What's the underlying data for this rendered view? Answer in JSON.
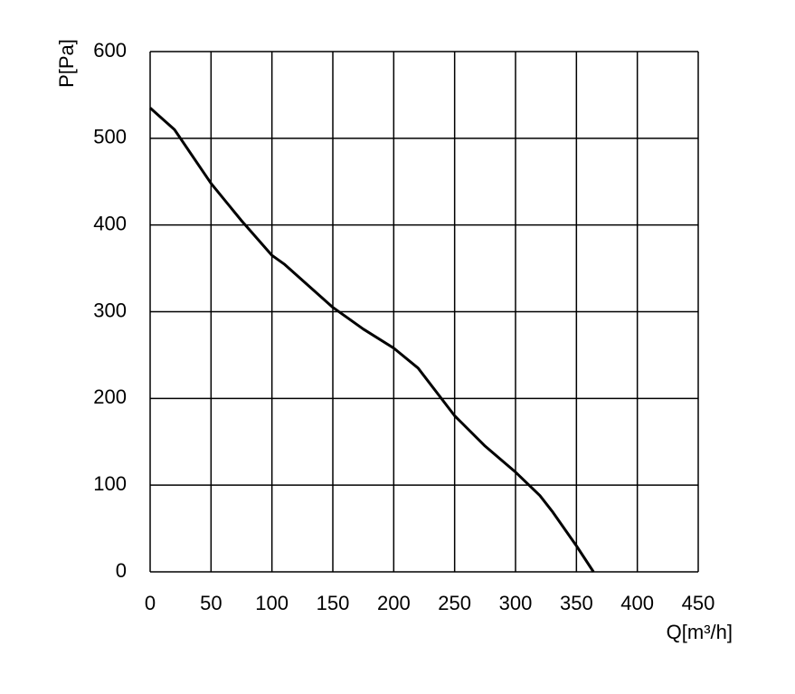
{
  "chart_data": {
    "type": "line",
    "x_label": "Q[m³/h]",
    "y_label": "P[Pa]",
    "series": [
      {
        "name": "P",
        "color": "#000000",
        "x": [
          0,
          20,
          50,
          75,
          100,
          110,
          150,
          175,
          200,
          220,
          250,
          275,
          300,
          320,
          330,
          350,
          364
        ],
        "values": [
          535,
          510,
          448,
          405,
          365,
          355,
          305,
          280,
          258,
          235,
          180,
          145,
          115,
          88,
          70,
          30,
          0
        ]
      }
    ],
    "xlim": [
      0,
      450
    ],
    "xticks": [
      0,
      50,
      100,
      150,
      200,
      250,
      300,
      350,
      400,
      450
    ],
    "ylim": [
      0,
      600
    ],
    "yticks": [
      0,
      100,
      200,
      300,
      400,
      500,
      600
    ],
    "grid": true
  }
}
